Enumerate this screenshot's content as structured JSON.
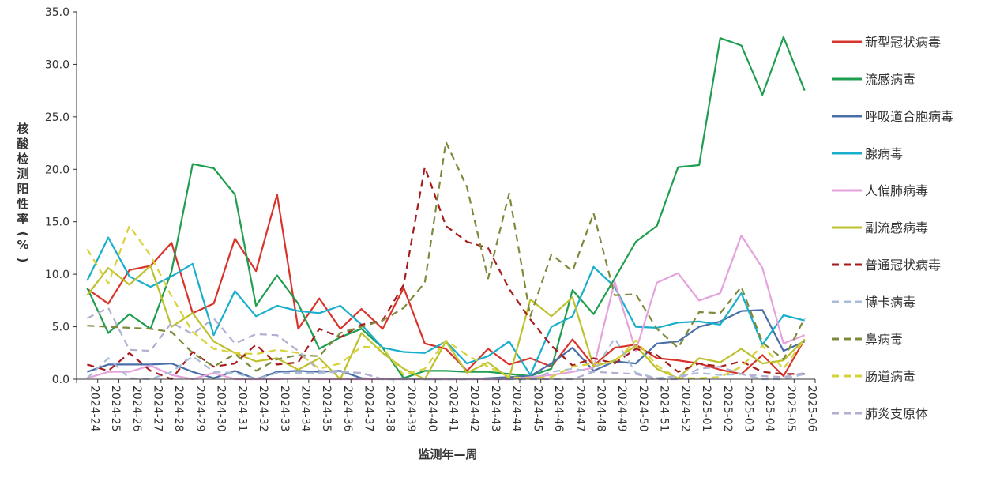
{
  "chart_data": {
    "type": "line",
    "title": "",
    "xlabel": "监测年—周",
    "ylabel": "核酸检测阳性率(%)",
    "ylim": [
      0,
      35
    ],
    "yticks": [
      "0.0",
      "5.0",
      "10.0",
      "15.0",
      "20.0",
      "25.0",
      "30.0",
      "35.0"
    ],
    "grid": false,
    "legend_position": "right",
    "categories": [
      "2024-24",
      "2024-25",
      "2024-26",
      "2024-27",
      "2024-28",
      "2024-29",
      "2024-30",
      "2024-31",
      "2024-32",
      "2024-33",
      "2024-34",
      "2024-35",
      "2024-36",
      "2024-37",
      "2024-38",
      "2024-39",
      "2024-40",
      "2024-41",
      "2024-42",
      "2024-43",
      "2024-44",
      "2024-45",
      "2024-46",
      "2024-47",
      "2024-48",
      "2024-49",
      "2024-50",
      "2024-51",
      "2024-52",
      "2025-01",
      "2025-02",
      "2025-03",
      "2025-04",
      "2025-05",
      "2025-06"
    ],
    "series": [
      {
        "name": "新型冠状病毒",
        "color": "#d9342b",
        "dash": "solid",
        "values": [
          8.6,
          7.2,
          10.4,
          10.8,
          13.0,
          6.3,
          7.2,
          13.4,
          10.3,
          17.6,
          4.8,
          7.7,
          4.8,
          6.7,
          4.8,
          8.7,
          3.4,
          2.9,
          0.8,
          2.9,
          1.4,
          2.0,
          1.2,
          3.8,
          1.3,
          3.0,
          3.3,
          2.0,
          1.8,
          1.5,
          0.9,
          0.5,
          2.3,
          0.3,
          3.8
        ]
      },
      {
        "name": "流感病毒",
        "color": "#1f9e4f",
        "dash": "solid",
        "values": [
          8.7,
          4.4,
          6.2,
          4.8,
          10.3,
          20.5,
          20.1,
          17.6,
          7.0,
          9.9,
          7.2,
          2.9,
          4.0,
          4.8,
          3.0,
          0.1,
          0.8,
          0.8,
          0.7,
          0.7,
          0.5,
          0.3,
          1.0,
          8.5,
          6.2,
          9.6,
          13.1,
          14.6,
          20.2,
          20.4,
          32.5,
          31.8,
          27.1,
          32.6,
          27.5
        ]
      },
      {
        "name": "呼吸道合胞病毒",
        "color": "#4a6fa8",
        "dash": "solid",
        "values": [
          0.7,
          1.4,
          1.4,
          1.4,
          1.5,
          0.7,
          0.1,
          0.8,
          0.0,
          0.7,
          0.8,
          0.7,
          0.8,
          0.1,
          0.0,
          0.1,
          0.0,
          0.0,
          0.0,
          0.1,
          0.2,
          0.3,
          1.5,
          3.0,
          0.8,
          1.7,
          1.5,
          3.4,
          3.6,
          5.0,
          5.5,
          6.5,
          6.6,
          2.7,
          3.6
        ]
      },
      {
        "name": "腺病毒",
        "color": "#19aecb",
        "dash": "solid",
        "values": [
          9.4,
          13.5,
          9.8,
          8.8,
          9.8,
          11.0,
          4.2,
          8.4,
          6.0,
          7.0,
          6.5,
          6.3,
          7.0,
          5.2,
          3.0,
          2.6,
          2.5,
          3.6,
          1.5,
          2.2,
          3.6,
          0.4,
          5.0,
          6.0,
          10.7,
          8.8,
          5.0,
          4.9,
          5.4,
          5.5,
          5.2,
          8.2,
          3.3,
          6.1,
          5.6
        ]
      },
      {
        "name": "人偏肺病毒",
        "color": "#e6a2dc",
        "dash": "solid",
        "values": [
          0.1,
          0.7,
          0.7,
          1.3,
          0.4,
          0.0,
          0.6,
          0.0,
          0.0,
          0.0,
          0.1,
          0.0,
          0.0,
          0.0,
          0.0,
          0.0,
          0.0,
          0.0,
          0.0,
          0.0,
          0.0,
          0.2,
          0.4,
          0.7,
          1.1,
          9.3,
          2.7,
          9.2,
          10.1,
          7.5,
          8.2,
          13.7,
          10.6,
          3.4,
          4.2
        ]
      },
      {
        "name": "副流感病毒",
        "color": "#bdc12d",
        "dash": "solid",
        "values": [
          8.0,
          10.6,
          9.0,
          10.8,
          5.0,
          6.3,
          3.6,
          2.5,
          1.7,
          2.0,
          0.9,
          2.0,
          0.0,
          4.4,
          2.5,
          1.0,
          0.0,
          3.6,
          0.6,
          1.6,
          0.1,
          7.6,
          6.0,
          7.8,
          1.2,
          1.8,
          3.2,
          1.0,
          0.1,
          2.0,
          1.6,
          2.9,
          1.5,
          1.8,
          3.8
        ]
      },
      {
        "name": "普通冠状病毒",
        "color": "#a61c1c",
        "dash": "dashed",
        "values": [
          1.4,
          0.8,
          2.5,
          0.8,
          0.0,
          2.6,
          1.2,
          1.5,
          3.3,
          1.4,
          1.6,
          4.8,
          4.0,
          5.2,
          5.6,
          9.0,
          20.2,
          14.6,
          13.1,
          12.5,
          8.6,
          5.7,
          3.2,
          1.3,
          2.0,
          1.5,
          2.9,
          2.3,
          0.7,
          1.5,
          1.2,
          1.7,
          0.7,
          0.5,
          0.5
        ]
      },
      {
        "name": "博卡病毒",
        "color": "#a8bcd8",
        "dash": "dashed",
        "values": [
          0.1,
          2.0,
          0.1,
          0.0,
          0.7,
          2.2,
          0.7,
          0.6,
          0.0,
          0.6,
          0.6,
          0.6,
          0.7,
          0.6,
          0.0,
          0.0,
          0.0,
          0.0,
          0.0,
          0.0,
          0.0,
          0.0,
          0.7,
          1.0,
          0.7,
          3.9,
          0.6,
          0.1,
          0.3,
          0.6,
          0.4,
          0.5,
          0.0,
          0.0,
          0.5
        ]
      },
      {
        "name": "鼻病毒",
        "color": "#7d8a3b",
        "dash": "dashed",
        "values": [
          5.1,
          5.0,
          4.9,
          4.8,
          4.5,
          2.5,
          1.2,
          2.4,
          0.8,
          1.9,
          2.3,
          2.2,
          4.4,
          5.0,
          5.6,
          6.8,
          9.2,
          22.6,
          18.3,
          9.6,
          17.7,
          6.0,
          11.9,
          10.3,
          15.8,
          8.0,
          8.1,
          4.8,
          3.0,
          6.4,
          6.3,
          8.8,
          3.5,
          1.9,
          5.8
        ]
      },
      {
        "name": "肠道病毒",
        "color": "#d7d23a",
        "dash": "dashed",
        "values": [
          12.4,
          9.1,
          14.6,
          11.8,
          7.9,
          4.5,
          2.9,
          2.5,
          2.4,
          2.8,
          2.5,
          1.0,
          1.5,
          3.1,
          3.0,
          0.4,
          1.0,
          3.7,
          2.3,
          1.2,
          0.2,
          0.1,
          0.2,
          1.2,
          1.5,
          1.6,
          3.7,
          1.3,
          0.1,
          0.1,
          0.2,
          1.2,
          3.2,
          1.0,
          3.8
        ]
      },
      {
        "name": "肺炎支原体",
        "color": "#b4aed0",
        "dash": "dashed",
        "values": [
          5.8,
          6.8,
          2.8,
          2.7,
          5.4,
          4.3,
          5.8,
          3.4,
          4.3,
          4.2,
          2.7,
          0.8,
          0.7,
          0.6,
          0.0,
          0.0,
          0.0,
          0.0,
          0.0,
          0.0,
          0.0,
          0.0,
          0.0,
          0.0,
          0.7,
          0.6,
          0.5,
          0.0,
          0.0,
          1.0,
          1.2,
          0.5,
          0.3,
          0.2,
          0.6
        ]
      }
    ]
  }
}
